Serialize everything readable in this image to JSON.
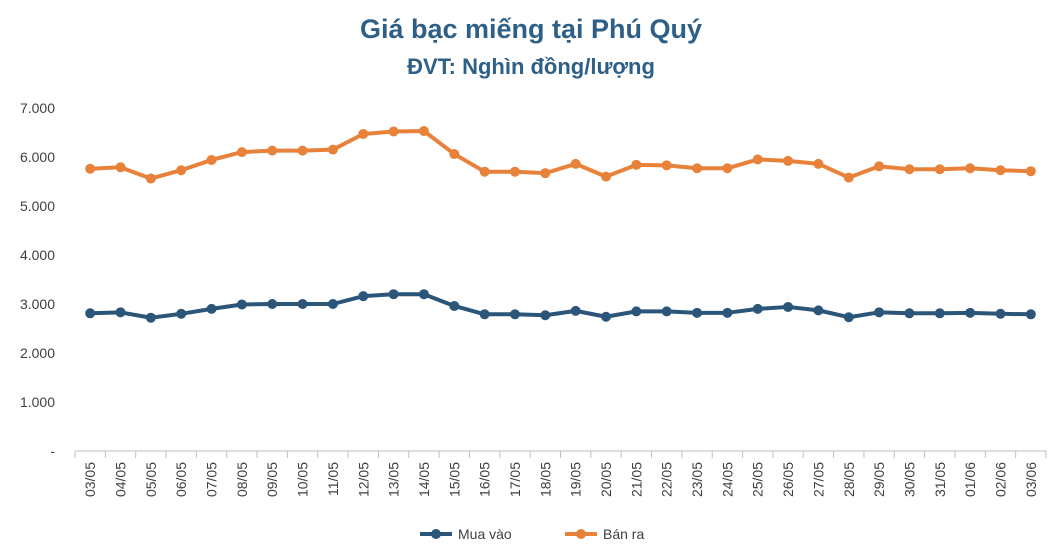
{
  "chart_data": {
    "type": "line",
    "title": "Giá bạc miếng tại Phú Quý",
    "subtitle": "ĐVT: Nghìn đồng/lượng",
    "categories": [
      "03/05",
      "04/05",
      "05/05",
      "06/05",
      "07/05",
      "08/05",
      "09/05",
      "10/05",
      "11/05",
      "12/05",
      "13/05",
      "14/05",
      "15/05",
      "16/05",
      "17/05",
      "18/05",
      "19/05",
      "20/05",
      "21/05",
      "22/05",
      "23/05",
      "24/05",
      "25/05",
      "26/05",
      "27/05",
      "28/05",
      "29/05",
      "30/05",
      "31/05",
      "01/06",
      "02/06",
      "03/06"
    ],
    "y_ticks": [
      "-",
      "1.000",
      "2.000",
      "3.000",
      "4.000",
      "5.000",
      "6.000",
      "7.000"
    ],
    "ylim": [
      0,
      7000
    ],
    "grid": false,
    "legend_position": "bottom",
    "series": [
      {
        "name": "Mua vào",
        "color": "#2b5579",
        "values": [
          2810,
          2830,
          2720,
          2800,
          2900,
          2990,
          3000,
          3000,
          3000,
          3160,
          3200,
          3200,
          2960,
          2790,
          2790,
          2770,
          2860,
          2740,
          2850,
          2850,
          2820,
          2820,
          2900,
          2940,
          2870,
          2730,
          2830,
          2810,
          2810,
          2820,
          2800,
          2790
        ]
      },
      {
        "name": "Bán ra",
        "color": "#e8823a",
        "values": [
          5760,
          5790,
          5560,
          5730,
          5940,
          6100,
          6130,
          6130,
          6150,
          6470,
          6520,
          6530,
          6060,
          5700,
          5700,
          5670,
          5860,
          5600,
          5840,
          5830,
          5770,
          5770,
          5950,
          5920,
          5860,
          5580,
          5810,
          5750,
          5750,
          5770,
          5730,
          5710
        ]
      }
    ]
  }
}
